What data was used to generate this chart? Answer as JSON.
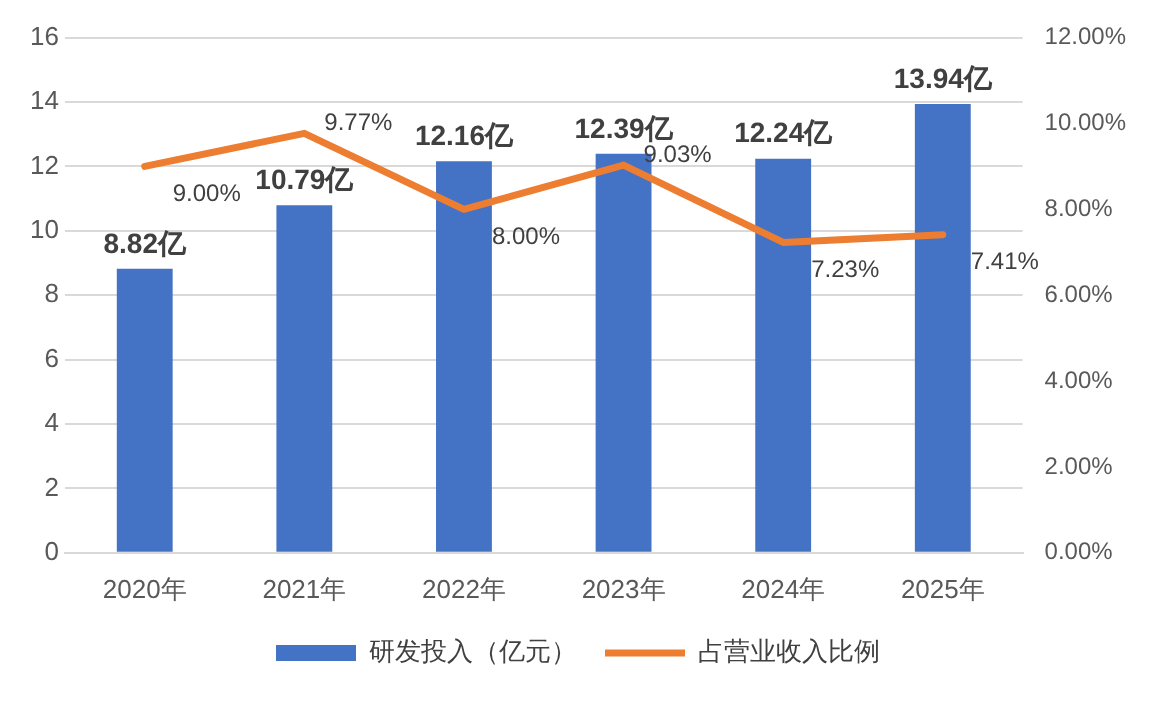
{
  "chart_data": {
    "type": "bar",
    "categories": [
      "2020年",
      "2021年",
      "2022年",
      "2023年",
      "2024年",
      "2025年"
    ],
    "series": [
      {
        "name": "研发投入（亿元）",
        "color": "#4472c4",
        "values": [
          8.82,
          10.79,
          12.16,
          12.39,
          12.24,
          13.94
        ],
        "value_labels": [
          "8.82亿",
          "10.79亿",
          "12.16亿",
          "12.39亿",
          "12.24亿",
          "13.94亿"
        ]
      },
      {
        "name": "占营业收入比例",
        "type": "line",
        "axis": "y2",
        "color": "#ed7d31",
        "values": [
          9.0,
          9.77,
          8.0,
          9.03,
          7.23,
          7.41
        ],
        "value_labels": [
          "9.00%",
          "9.77%",
          "8.00%",
          "9.03%",
          "7.23%",
          "7.41%"
        ]
      }
    ],
    "ylim": [
      0,
      16
    ],
    "yticks": [
      0,
      2,
      4,
      6,
      8,
      10,
      12,
      14,
      16
    ],
    "y2lim": [
      0,
      12
    ],
    "y2ticks": [
      {
        "value": 0,
        "label": "0.00%"
      },
      {
        "value": 2,
        "label": "2.00%"
      },
      {
        "value": 4,
        "label": "4.00%"
      },
      {
        "value": 6,
        "label": "6.00%"
      },
      {
        "value": 8,
        "label": "8.00%"
      },
      {
        "value": 10,
        "label": "10.00%"
      },
      {
        "value": 12,
        "label": "12.00%"
      }
    ],
    "grid": "y",
    "legend": "bottom",
    "marker": "none",
    "line_style": "solid"
  }
}
